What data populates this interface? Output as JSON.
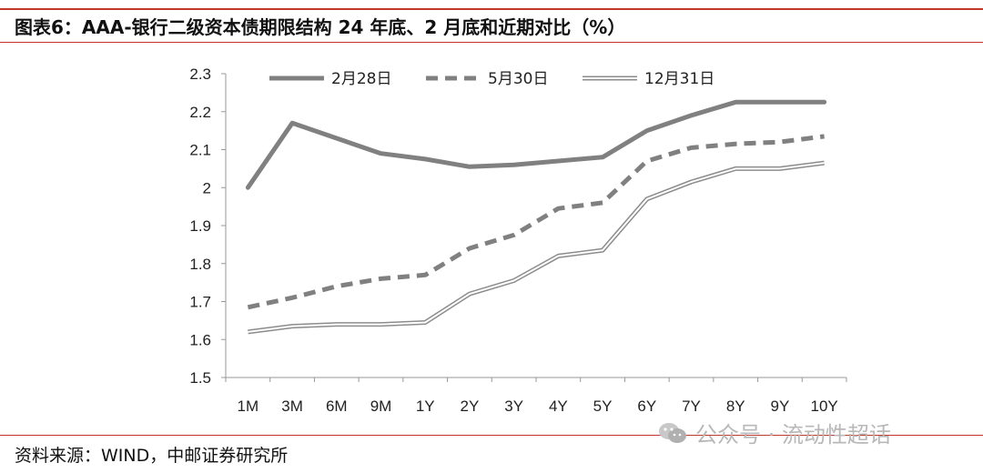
{
  "header": {
    "title": "图表6：AAA-银行二级资本债期限结构 24 年底、2 月底和近期对比（%）"
  },
  "footer": {
    "source": "资料来源：WIND，中邮证券研究所"
  },
  "watermark": {
    "text": "公众号 · 流动性超话",
    "icon": "wechat-icon"
  },
  "chart_data": {
    "type": "line",
    "categories": [
      "1M",
      "3M",
      "6M",
      "9M",
      "1Y",
      "2Y",
      "3Y",
      "4Y",
      "5Y",
      "6Y",
      "7Y",
      "8Y",
      "9Y",
      "10Y"
    ],
    "series": [
      {
        "name": "2月28日",
        "style": "solid",
        "color": "#808080",
        "values": [
          2.0,
          2.17,
          2.13,
          2.09,
          2.075,
          2.055,
          2.06,
          2.07,
          2.08,
          2.15,
          2.19,
          2.225,
          2.225,
          2.225
        ]
      },
      {
        "name": "5月30日",
        "style": "dashed",
        "color": "#808080",
        "values": [
          1.685,
          1.71,
          1.74,
          1.76,
          1.77,
          1.84,
          1.875,
          1.945,
          1.96,
          2.07,
          2.105,
          2.115,
          2.12,
          2.135
        ]
      },
      {
        "name": "12月31日",
        "style": "double",
        "color": "#8c8c8c",
        "values": [
          1.62,
          1.635,
          1.64,
          1.64,
          1.645,
          1.72,
          1.755,
          1.82,
          1.835,
          1.97,
          2.015,
          2.05,
          2.05,
          2.065
        ]
      }
    ],
    "yticks": [
      "1.5",
      "1.6",
      "1.7",
      "1.8",
      "1.9",
      "2",
      "2.1",
      "2.2",
      "2.3"
    ],
    "ylim": [
      1.5,
      2.3
    ],
    "grid": false,
    "legend_position": "top"
  }
}
